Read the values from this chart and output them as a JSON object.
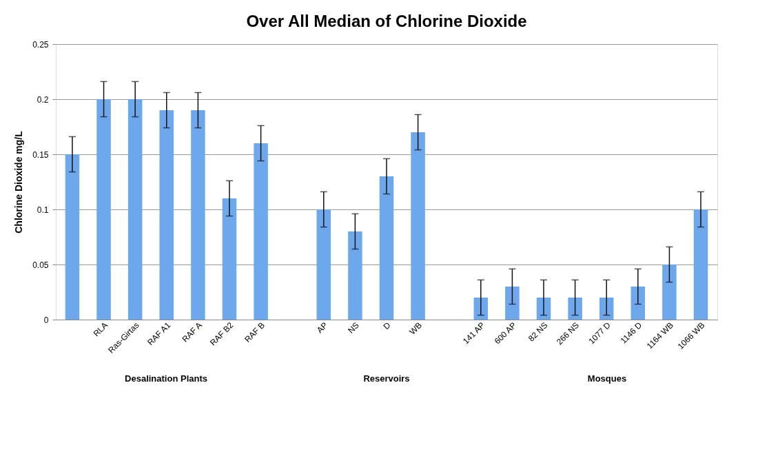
{
  "chart_data": {
    "type": "bar",
    "title": "Over All Median of Chlorine Dioxide",
    "ylabel": "Chlorine Dioxide mg/L",
    "categories": [
      null,
      "RLA",
      "Ras-Girtas",
      "RAF A1",
      "RAF A",
      "RAF B2",
      "RAF B",
      null,
      "AP",
      "NS",
      "D",
      "WB",
      null,
      "141 AP",
      "600 AP",
      "82 NS",
      "266 NS",
      "1077 D",
      "1146 D",
      "1164 WB",
      "1066 WB"
    ],
    "values": [
      0.15,
      0.2,
      0.2,
      0.19,
      0.19,
      0.11,
      0.16,
      null,
      0.1,
      0.08,
      0.13,
      0.17,
      null,
      0.02,
      0.03,
      0.02,
      0.02,
      0.02,
      0.03,
      0.05,
      0.1
    ],
    "errors": [
      0.016,
      0.016,
      0.016,
      0.016,
      0.016,
      0.016,
      0.016,
      null,
      0.016,
      0.016,
      0.016,
      0.016,
      null,
      0.016,
      0.016,
      0.016,
      0.016,
      0.016,
      0.016,
      0.016,
      0.016
    ],
    "color": "#6ea8ec",
    "ylim": [
      0,
      0.25
    ],
    "yticks": [
      0,
      0.05,
      0.1,
      0.15,
      0.2,
      0.25
    ],
    "grid": "y",
    "annotations": [
      "Desalination Plants",
      "Reservoirs",
      "Mosques"
    ]
  }
}
